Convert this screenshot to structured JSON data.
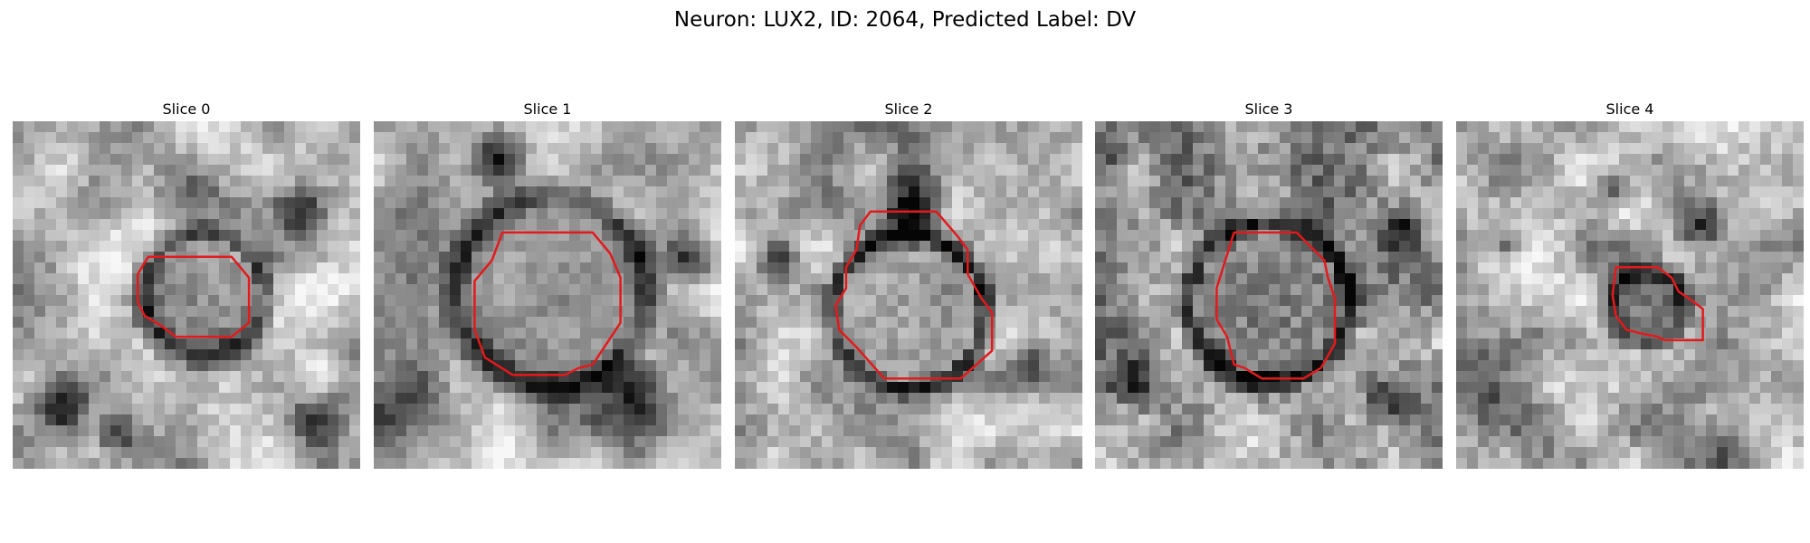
{
  "figure": {
    "title": "Neuron: LUX2, ID: 2064, Predicted Label: DV"
  },
  "colors": {
    "contour": "#e31a1c"
  },
  "panels": [
    {
      "title": "Slice 0"
    },
    {
      "title": "Slice 1"
    },
    {
      "title": "Slice 2"
    },
    {
      "title": "Slice 3"
    },
    {
      "title": "Slice 4"
    }
  ]
}
